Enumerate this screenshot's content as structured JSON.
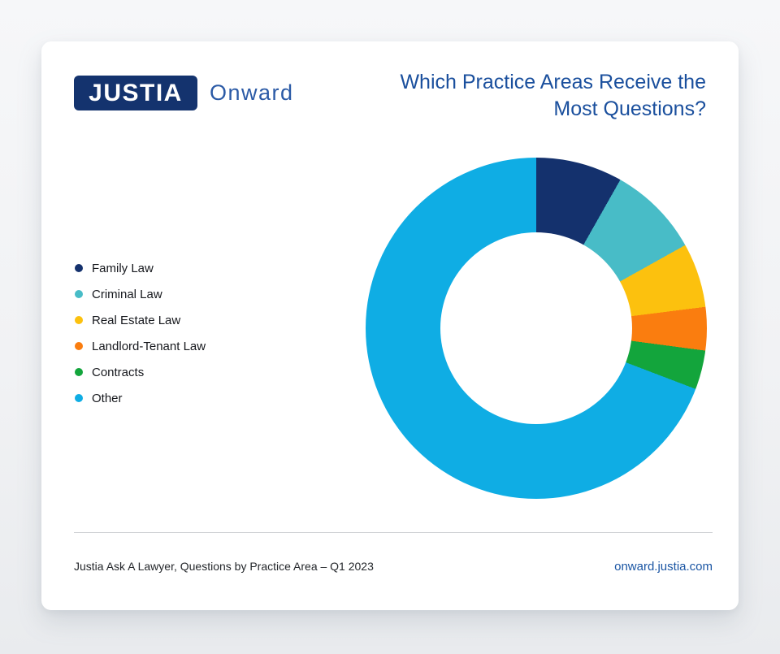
{
  "page": {
    "background_top": "#f6f7f9",
    "background_bottom": "#e9ebee",
    "card_color": "#ffffff"
  },
  "header": {
    "logo": {
      "brand": "JUSTIA",
      "suffix": "Onward",
      "brand_bg": "#14336e",
      "brand_color": "#ffffff",
      "suffix_color": "#2b5aa6"
    },
    "title": "Which Practice Areas Receive the Most Questions?",
    "title_color": "#1a4f9d"
  },
  "chart_data": {
    "type": "pie",
    "donut": true,
    "start_angle_deg": 0,
    "direction": "clockwise",
    "inner_radius_ratio": 0.562,
    "title": "Which Practice Areas Receive the Most Questions?",
    "legend_position": "left",
    "categories": [
      "Family Law",
      "Criminal Law",
      "Real Estate Law",
      "Landlord-Tenant Law",
      "Contracts",
      "Other"
    ],
    "values_percent": [
      8.2,
      8.7,
      6.1,
      4.1,
      3.7,
      69.2
    ],
    "colors": [
      "#14316d",
      "#48bcc7",
      "#fcc10e",
      "#fa7d0f",
      "#13a53c",
      "#0fade4"
    ]
  },
  "footer": {
    "source": "Justia Ask A Lawyer, Questions by Practice Area – Q1 2023",
    "site": "onward.justia.com",
    "site_color": "#1a55a3",
    "divider_color": "#cfd2d5"
  }
}
